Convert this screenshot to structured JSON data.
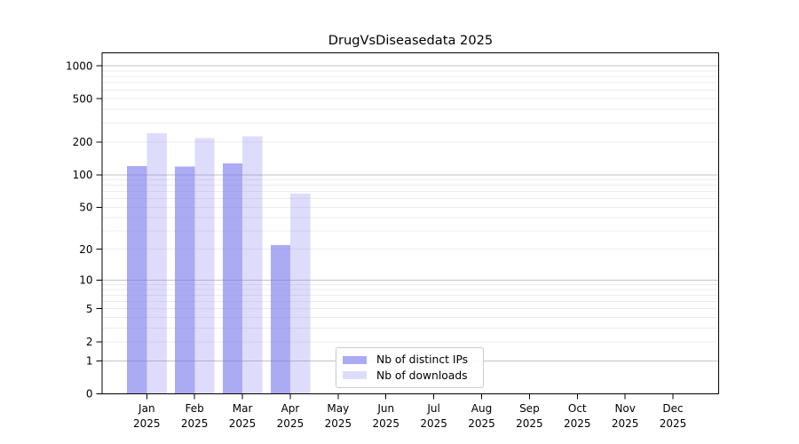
{
  "figure": {
    "title": "DrugVsDiseasedata 2025"
  },
  "chart_data": {
    "type": "bar",
    "title": "DrugVsDiseasedata 2025",
    "yscale": "log1p",
    "ylim": [
      0,
      1315
    ],
    "grid": true,
    "categories": [
      "Jan",
      "Feb",
      "Mar",
      "Apr",
      "May",
      "Jun",
      "Jul",
      "Aug",
      "Sep",
      "Oct",
      "Nov",
      "Dec"
    ],
    "category_year": "2025",
    "yticks": [
      0,
      1,
      2,
      5,
      10,
      20,
      50,
      100,
      200,
      500,
      1000
    ],
    "series": [
      {
        "name": "Nb of distinct IPs",
        "color": "rgba(119,119,238,0.62)",
        "values": [
          120,
          119,
          127,
          22,
          null,
          null,
          null,
          null,
          null,
          null,
          null,
          null
        ]
      },
      {
        "name": "Nb of downloads",
        "color": "rgba(119,119,238,0.25)",
        "values": [
          242,
          218,
          225,
          67,
          null,
          null,
          null,
          null,
          null,
          null,
          null,
          null
        ]
      }
    ],
    "legend": {
      "position": "inside-bottom-center",
      "labels": [
        "Nb of distinct IPs",
        "Nb of downloads"
      ]
    }
  },
  "colors": {
    "spine": "#000000",
    "grid_major": "#c3c3c3",
    "grid_minor": "#ececec",
    "tick": "#000000",
    "text": "#000000",
    "legend_border": "#cccccc",
    "legend_bg": "rgba(255,255,255,0.9)"
  }
}
